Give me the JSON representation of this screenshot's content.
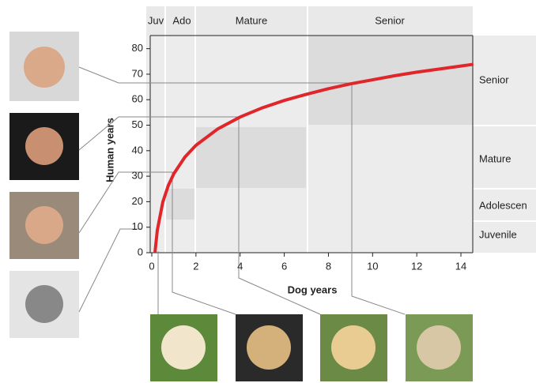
{
  "chart_data": {
    "type": "line",
    "x_label": "Dog years",
    "y_label": "Human years",
    "x": [
      0.15,
      0.25,
      0.5,
      0.75,
      1,
      1.5,
      2,
      3,
      4,
      5,
      6,
      7,
      8,
      9,
      10,
      11,
      12,
      13,
      14,
      14.5
    ],
    "values": [
      0.6,
      8.8,
      19.9,
      26.4,
      31,
      37.5,
      42.1,
      48.6,
      53.2,
      56.8,
      59.7,
      62.1,
      64.3,
      66.2,
      67.8,
      69.4,
      70.8,
      72.0,
      73.2,
      73.8
    ],
    "color": "#e0262b",
    "xlim": [
      0,
      14.5
    ],
    "xticks": [
      0,
      2,
      4,
      6,
      8,
      10,
      12,
      14
    ],
    "ylim": [
      0,
      85
    ],
    "yticks": [
      0,
      10,
      20,
      30,
      40,
      50,
      60,
      70,
      80
    ],
    "top_labels": [
      "Juv",
      "Ado",
      "Mature",
      "Senior"
    ],
    "side_labels": [
      "Senior",
      "Mature",
      "Adolescen",
      "Juvenile"
    ]
  }
}
